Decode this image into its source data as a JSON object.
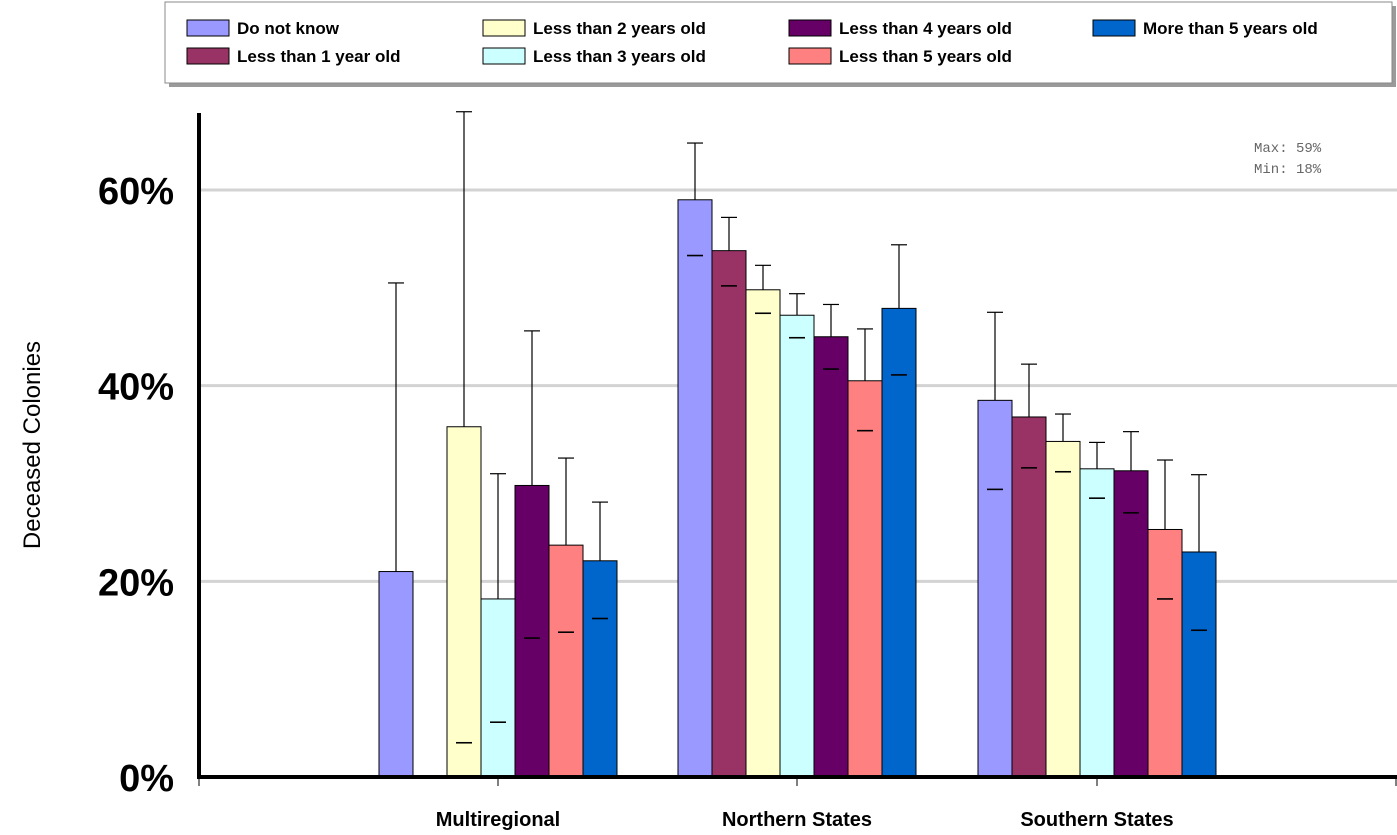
{
  "chart_data": {
    "type": "bar",
    "title": "",
    "xlabel": "",
    "ylabel": "Deceased Colonies",
    "ylim": [
      0,
      68
    ],
    "yticks": [
      0,
      20,
      40,
      60
    ],
    "ytick_labels": [
      "0%",
      "20%",
      "40%",
      "60%"
    ],
    "grid": true,
    "legend_position": "top",
    "categories": [
      "Multiregional",
      "Northern States",
      "Southern States"
    ],
    "annotations": [
      "Max: 59%",
      "Min: 18%"
    ],
    "series": [
      {
        "name": "Do not know",
        "color": "#9999ff",
        "values": [
          21,
          59,
          38.5
        ],
        "error_low": [
          null,
          53.3,
          29.4
        ],
        "error_high": [
          50.5,
          64.8,
          47.5
        ]
      },
      {
        "name": "Less than 1 year old",
        "color": "#993366",
        "values": [
          null,
          53.8,
          36.8
        ],
        "error_low": [
          null,
          50.2,
          31.6
        ],
        "error_high": [
          null,
          57.2,
          42.2
        ]
      },
      {
        "name": "Less than 2 years old",
        "color": "#ffffcc",
        "values": [
          35.8,
          49.8,
          34.3
        ],
        "error_low": [
          3.5,
          47.4,
          31.2
        ],
        "error_high": [
          68,
          52.3,
          37.1
        ]
      },
      {
        "name": "Less than 3 years old",
        "color": "#ccffff",
        "values": [
          18.2,
          47.2,
          31.5
        ],
        "error_low": [
          5.6,
          44.9,
          28.5
        ],
        "error_high": [
          31,
          49.4,
          34.2
        ]
      },
      {
        "name": "Less than 4 years old",
        "color": "#660066",
        "values": [
          29.8,
          45,
          31.3
        ],
        "error_low": [
          14.2,
          41.7,
          27
        ],
        "error_high": [
          45.6,
          48.3,
          35.3
        ]
      },
      {
        "name": "Less than 5 years old",
        "color": "#ff8080",
        "values": [
          23.7,
          40.5,
          25.3
        ],
        "error_low": [
          14.8,
          35.4,
          18.2
        ],
        "error_high": [
          32.6,
          45.8,
          32.4
        ]
      },
      {
        "name": "More than 5 years old",
        "color": "#0066cc",
        "values": [
          22.1,
          47.9,
          23
        ],
        "error_low": [
          16.2,
          41.1,
          15
        ],
        "error_high": [
          28.1,
          54.4,
          30.9
        ]
      }
    ]
  }
}
